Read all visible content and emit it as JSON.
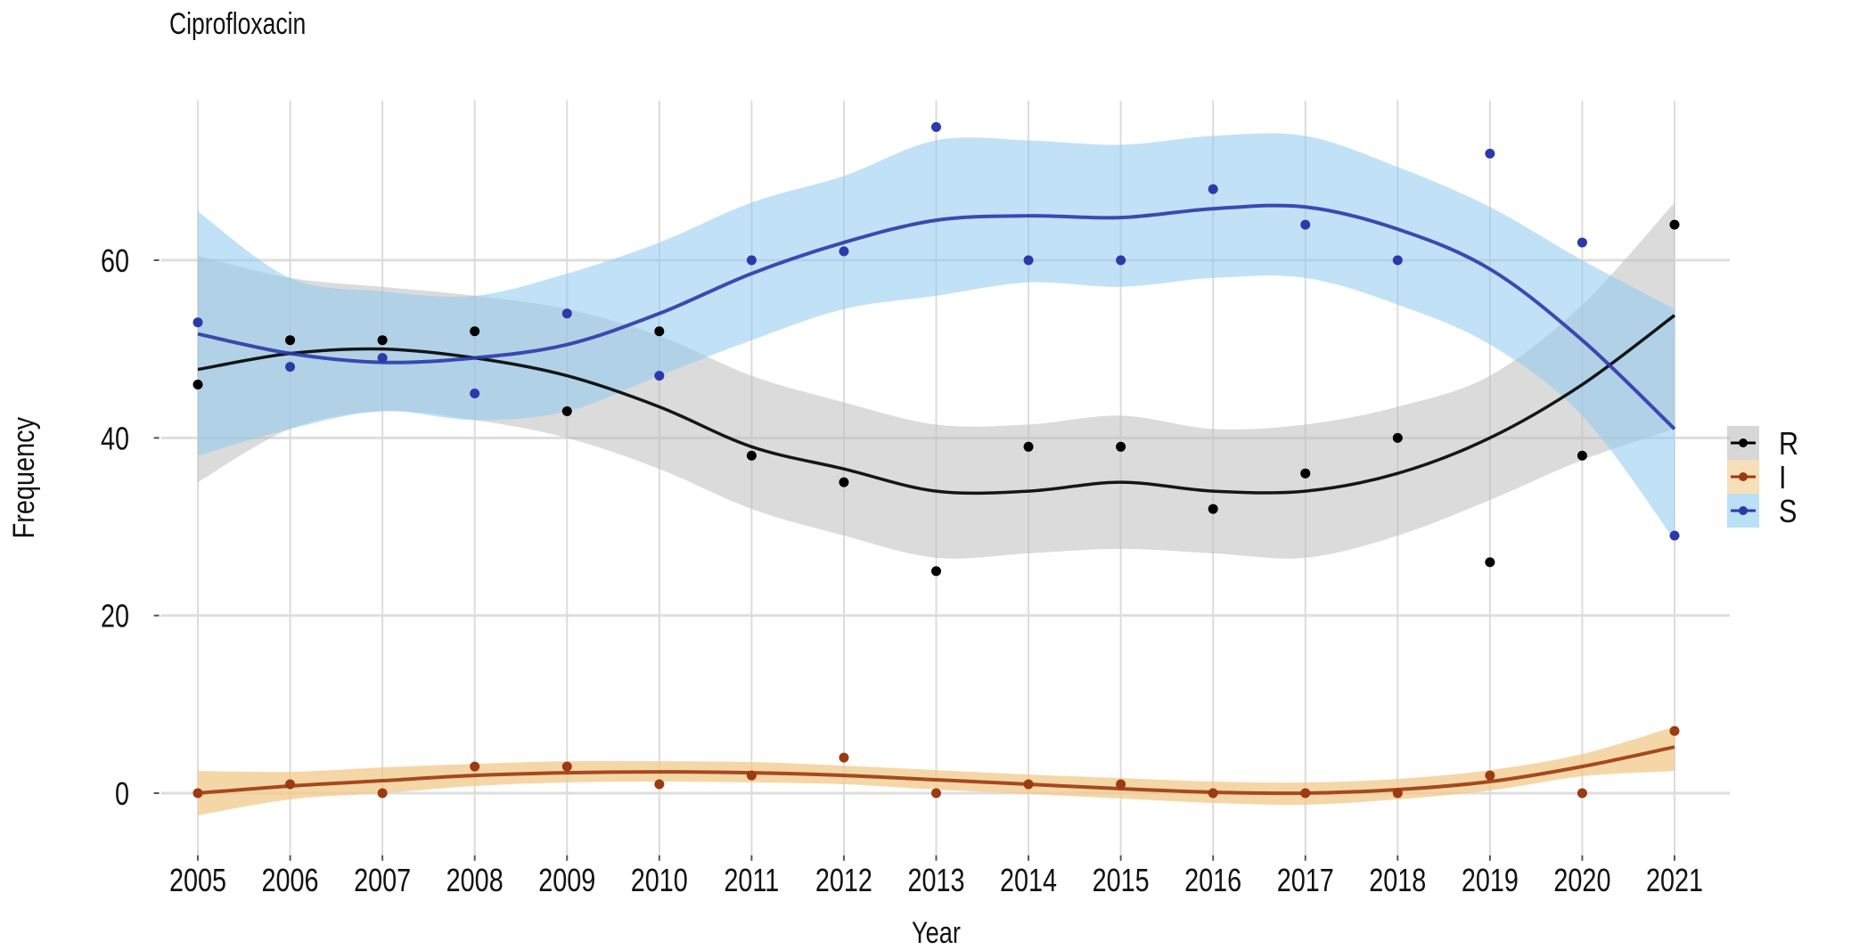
{
  "chart_data": {
    "type": "scatter",
    "title": "Ciprofloxacin",
    "xlabel": "Year",
    "ylabel": "Frequency",
    "x": [
      2005,
      2006,
      2007,
      2008,
      2009,
      2010,
      2011,
      2012,
      2013,
      2014,
      2015,
      2016,
      2017,
      2018,
      2019,
      2020,
      2021
    ],
    "x_tick_labels": [
      "2005",
      "2006",
      "2007",
      "2008",
      "2009",
      "2010",
      "2011",
      "2012",
      "2013",
      "2014",
      "2015",
      "2016",
      "2017",
      "2018",
      "2019",
      "2020",
      "2021"
    ],
    "y_ticks": [
      0,
      20,
      40,
      60
    ],
    "y_tick_labels": [
      "0",
      "20",
      "40",
      "60"
    ],
    "ylim": [
      -7,
      78
    ],
    "xlim": [
      2004.6,
      2021.6
    ],
    "grid": true,
    "legend_position": "right",
    "smoothing": "loess with confidence band",
    "series": [
      {
        "name": "R",
        "color": "#000000",
        "band_color": "#bdbdbd",
        "values": [
          46,
          51,
          51,
          52,
          43,
          52,
          38,
          35,
          25,
          39,
          39,
          32,
          36,
          40,
          26,
          38,
          64
        ],
        "fit": [
          47.7,
          49.5,
          50,
          49,
          47,
          43.5,
          39,
          36.5,
          34,
          34,
          35,
          34,
          34,
          36,
          40,
          46,
          53.8
        ],
        "band_lower": [
          35,
          41,
          43,
          42,
          40,
          36.5,
          32,
          29,
          26.5,
          27,
          27.5,
          27,
          26.5,
          29,
          33,
          37.5,
          41
        ],
        "band_upper": [
          60.5,
          58,
          57,
          56,
          54.5,
          51.5,
          47,
          44,
          41.5,
          41.5,
          42.5,
          41,
          41.5,
          43.5,
          47,
          55,
          66.5
        ]
      },
      {
        "name": "I",
        "color": "#9c3a12",
        "band_color": "#f2c98a",
        "values": [
          0,
          1,
          0,
          3,
          3,
          1,
          2,
          4,
          0,
          1,
          1,
          0,
          0,
          0,
          2,
          0,
          7
        ],
        "fit": [
          0,
          0.8,
          1.4,
          2,
          2.3,
          2.4,
          2.3,
          2,
          1.5,
          1,
          0.5,
          0.1,
          0,
          0.4,
          1.3,
          3,
          5.2
        ],
        "band_lower": [
          -2.5,
          -0.7,
          0,
          0.8,
          1.2,
          1.3,
          1.2,
          1,
          0.4,
          -0.1,
          -0.6,
          -1.1,
          -1.3,
          -0.7,
          0.3,
          1.9,
          2.5
        ],
        "band_upper": [
          2.5,
          2.4,
          2.9,
          3.3,
          3.6,
          3.6,
          3.5,
          3.1,
          2.6,
          2.1,
          1.7,
          1.3,
          1.2,
          1.6,
          2.6,
          4.4,
          7.5
        ]
      },
      {
        "name": "S",
        "color": "#2b3aa8",
        "band_color": "#8ecbef",
        "values": [
          53,
          48,
          49,
          45,
          54,
          47,
          60,
          61,
          75,
          60,
          60,
          68,
          64,
          60,
          72,
          62,
          29
        ],
        "fit": [
          51.7,
          49.5,
          48.5,
          49,
          50.5,
          54,
          58.5,
          62,
          64.5,
          65,
          64.8,
          65.8,
          66,
          63.5,
          59,
          51,
          41
        ],
        "band_lower": [
          38,
          41,
          43,
          42,
          43,
          47,
          51,
          54.5,
          56,
          57.5,
          57,
          58,
          58,
          55,
          50.5,
          42.5,
          28.5
        ],
        "band_upper": [
          65.5,
          58,
          56.5,
          56,
          58.5,
          62,
          66.5,
          69.5,
          73.5,
          73.5,
          73,
          74,
          74,
          70.5,
          66,
          60,
          54.5
        ]
      }
    ]
  }
}
